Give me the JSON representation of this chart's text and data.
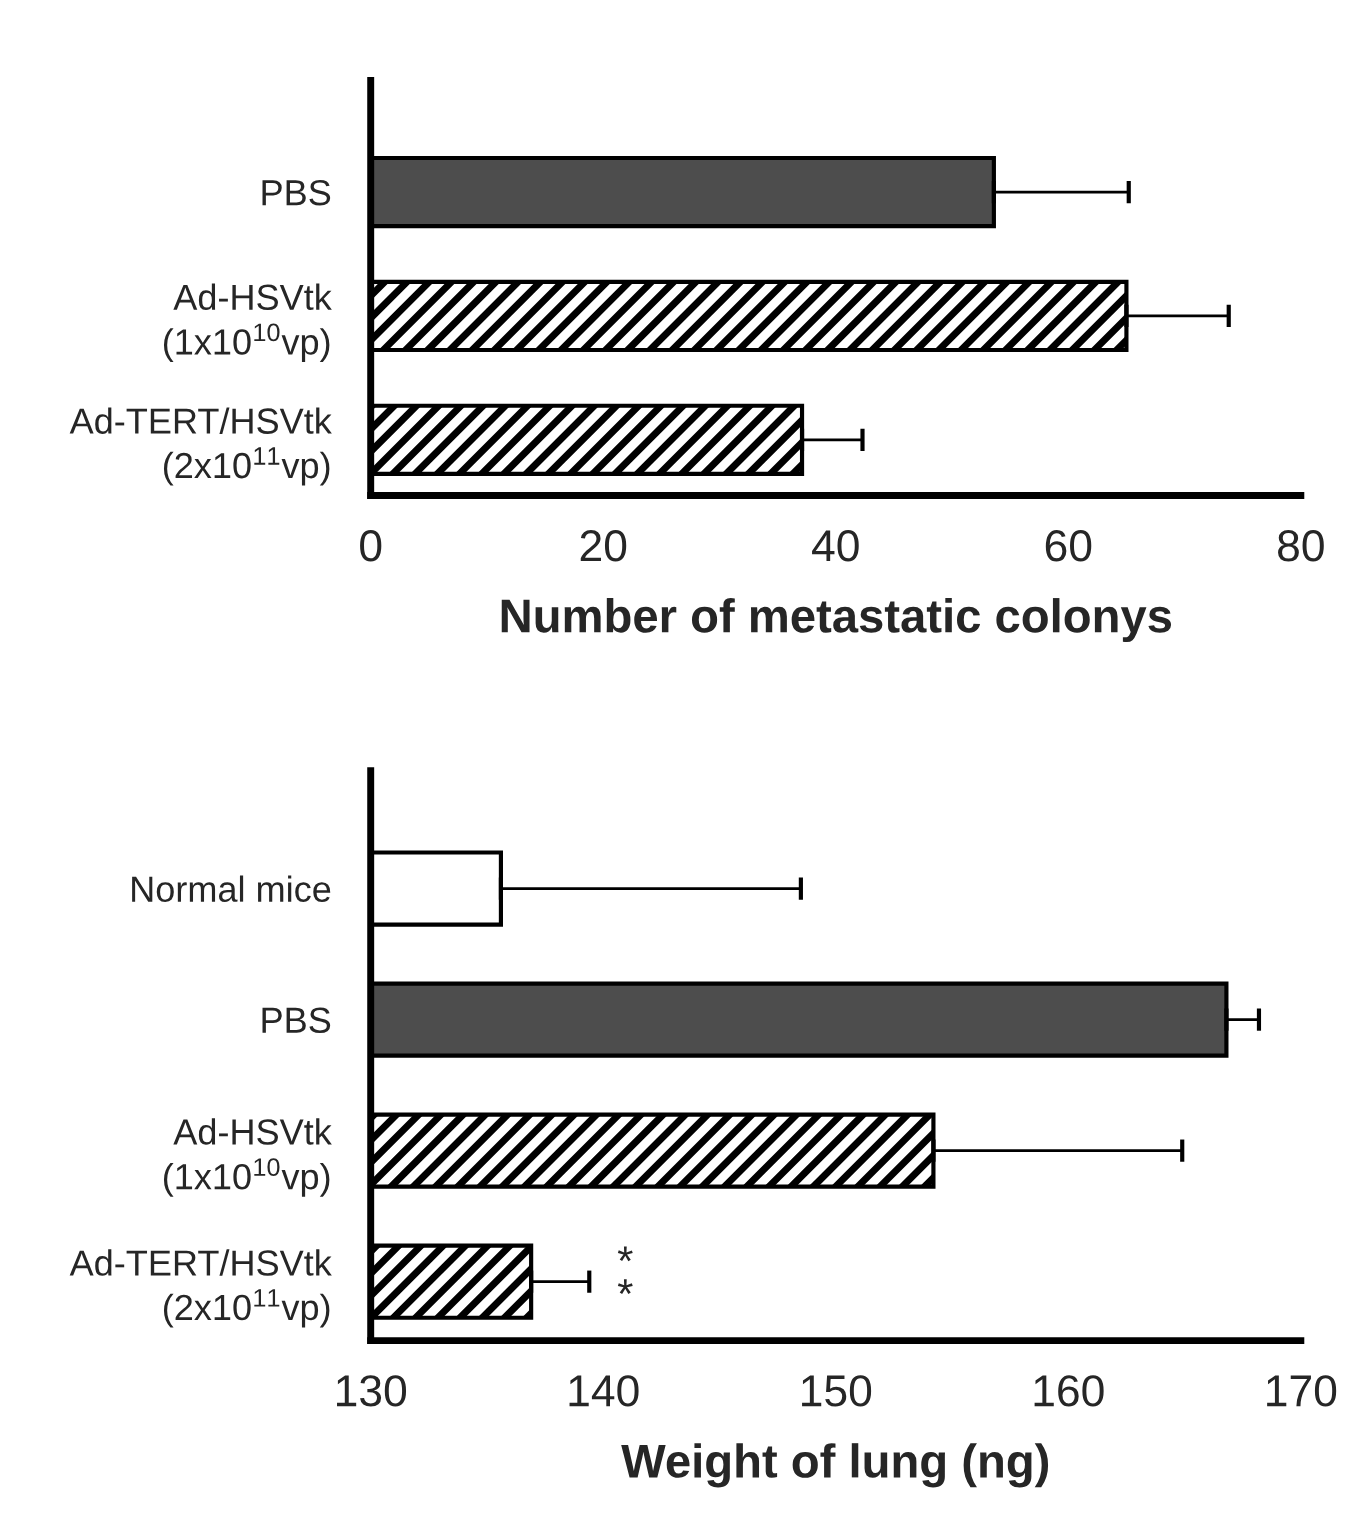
{
  "chart_data": [
    {
      "type": "bar",
      "orientation": "horizontal",
      "xlabel": "Number of metastatic colonys",
      "categories": [
        "PBS",
        "Ad-HSVtk\n(1x10$^{10}$vp)",
        "Ad-TERT/HSVtk\n(2x10$^{11}$vp)"
      ],
      "values": [
        53.6,
        65.0,
        37.1
      ],
      "errors": [
        [
          53.6,
          65.2
        ],
        [
          65.0,
          73.8
        ],
        [
          37.1,
          42.3
        ]
      ],
      "colors": [
        "#4d4d4d",
        "#000000",
        "#000000"
      ],
      "xlim": [
        0,
        80
      ],
      "xticks": [
        0,
        20,
        40,
        60,
        80
      ],
      "grid": false
    },
    {
      "type": "bar",
      "orientation": "horizontal",
      "xlabel": "Weight of lung (ng)",
      "categories": [
        "Normal mice",
        "PBS",
        "Ad-HSVtk\n(1x10$^{10}$vp)",
        "Ad-TERT/HSVtk\n(2x10$^{11}$vp)"
      ],
      "base": [
        130,
        130,
        130,
        130
      ],
      "values": [
        5.6,
        36.8,
        24.2,
        6.9
      ],
      "errors": [
        [
          135.6,
          148.5
        ],
        [
          166.8,
          168.2
        ],
        [
          154.2,
          164.9
        ],
        [
          136.9,
          139.4
        ]
      ],
      "colors": [
        "#ffffff",
        "#4d4d4d",
        "#000000",
        "#000000"
      ],
      "annotations": [
        "*\n*"
      ],
      "xlim": [
        130,
        170
      ],
      "xticks": [
        130,
        140,
        150,
        160,
        170
      ],
      "grid": false
    }
  ]
}
